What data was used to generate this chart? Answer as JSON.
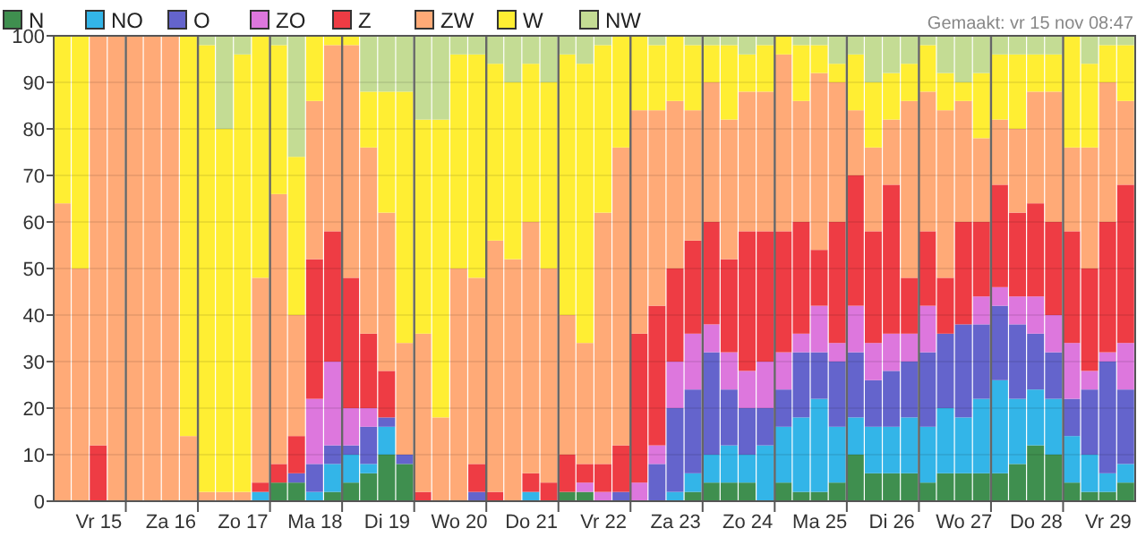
{
  "chart_data": {
    "type": "bar",
    "stacked": true,
    "legend": "top left",
    "grid": true,
    "annotations": [
      "Gemaakt: vr 15 nov 08:47"
    ],
    "categories": [
      null,
      null,
      "Vr 15",
      null,
      null,
      null,
      "Za 16",
      null,
      null,
      null,
      "Zo 17",
      null,
      null,
      null,
      "Ma 18",
      null,
      null,
      null,
      "Di 19",
      null,
      null,
      null,
      "Wo 20",
      null,
      null,
      null,
      "Do 21",
      null,
      null,
      null,
      "Vr 22",
      null,
      null,
      null,
      "Za 23",
      null,
      null,
      null,
      "Zo 24",
      null,
      null,
      null,
      "Ma 25",
      null,
      null,
      null,
      "Di 26",
      null,
      null,
      null,
      "Wo 27",
      null,
      null,
      null,
      "Do 28",
      null,
      null,
      null,
      "Vr 29",
      null
    ],
    "ylim": [
      0,
      100
    ],
    "yticks": [
      0,
      10,
      20,
      30,
      40,
      50,
      60,
      70,
      80,
      90,
      100
    ],
    "series": [
      {
        "name": "N",
        "color": "#3f8f4f",
        "values": [
          0,
          0,
          0,
          0,
          0,
          0,
          0,
          0,
          0,
          0,
          0,
          0,
          4,
          4,
          0,
          2,
          4,
          6,
          10,
          8,
          0,
          0,
          0,
          0,
          0,
          0,
          0,
          0,
          2,
          2,
          0,
          0,
          0,
          0,
          0,
          2,
          4,
          4,
          4,
          0,
          4,
          2,
          2,
          4,
          10,
          6,
          6,
          6,
          4,
          6,
          6,
          6,
          6,
          8,
          12,
          10,
          4,
          2,
          2,
          4
        ]
      },
      {
        "name": "NO",
        "color": "#33b5e8",
        "values": [
          0,
          0,
          0,
          0,
          0,
          0,
          0,
          0,
          0,
          0,
          0,
          2,
          0,
          0,
          2,
          6,
          6,
          2,
          6,
          0,
          0,
          0,
          0,
          0,
          0,
          0,
          2,
          0,
          0,
          0,
          0,
          0,
          0,
          0,
          2,
          4,
          6,
          8,
          6,
          12,
          12,
          16,
          20,
          12,
          8,
          10,
          10,
          12,
          12,
          14,
          12,
          16,
          20,
          14,
          12,
          12,
          10,
          8,
          4,
          4
        ]
      },
      {
        "name": "O",
        "color": "#6464cc",
        "values": [
          0,
          0,
          0,
          0,
          0,
          0,
          0,
          0,
          0,
          0,
          0,
          0,
          0,
          2,
          6,
          4,
          2,
          8,
          2,
          2,
          0,
          0,
          0,
          2,
          0,
          0,
          0,
          0,
          0,
          0,
          0,
          2,
          0,
          8,
          18,
          18,
          22,
          12,
          10,
          8,
          8,
          14,
          10,
          14,
          14,
          10,
          12,
          12,
          16,
          16,
          20,
          16,
          16,
          16,
          12,
          10,
          8,
          14,
          24,
          16
        ]
      },
      {
        "name": "ZO",
        "color": "#dd77dd",
        "values": [
          0,
          0,
          0,
          0,
          0,
          0,
          0,
          0,
          0,
          0,
          0,
          0,
          0,
          0,
          14,
          18,
          8,
          4,
          0,
          0,
          0,
          0,
          0,
          0,
          0,
          0,
          0,
          0,
          0,
          2,
          2,
          0,
          4,
          4,
          10,
          12,
          6,
          8,
          8,
          10,
          8,
          4,
          10,
          4,
          10,
          8,
          8,
          6,
          10,
          0,
          0,
          6,
          4,
          6,
          8,
          8,
          12,
          4,
          2,
          10
        ]
      },
      {
        "name": "Z",
        "color": "#ee3c44",
        "values": [
          0,
          0,
          12,
          0,
          0,
          0,
          0,
          0,
          0,
          0,
          0,
          2,
          4,
          8,
          30,
          28,
          28,
          16,
          10,
          0,
          2,
          0,
          0,
          6,
          2,
          0,
          4,
          4,
          8,
          4,
          6,
          10,
          32,
          30,
          20,
          20,
          22,
          20,
          30,
          28,
          26,
          24,
          12,
          26,
          28,
          24,
          32,
          12,
          16,
          12,
          22,
          16,
          22,
          18,
          20,
          20,
          24,
          22,
          28,
          34
        ]
      },
      {
        "name": "ZW",
        "color": "#ffaa77",
        "values": [
          64,
          50,
          88,
          100,
          100,
          100,
          100,
          14,
          2,
          2,
          2,
          44,
          58,
          26,
          34,
          40,
          50,
          40,
          34,
          24,
          34,
          18,
          50,
          40,
          54,
          52,
          54,
          46,
          30,
          26,
          54,
          64,
          48,
          42,
          36,
          28,
          30,
          30,
          30,
          30,
          38,
          26,
          38,
          30,
          14,
          18,
          14,
          38,
          30,
          36,
          26,
          18,
          14,
          18,
          24,
          28,
          18,
          26,
          30,
          18
        ]
      },
      {
        "name": "W",
        "color": "#ffee33",
        "values": [
          36,
          50,
          0,
          0,
          0,
          0,
          0,
          86,
          96,
          78,
          94,
          52,
          32,
          34,
          14,
          2,
          2,
          12,
          26,
          54,
          46,
          64,
          46,
          48,
          38,
          38,
          34,
          40,
          56,
          60,
          36,
          24,
          16,
          14,
          14,
          14,
          8,
          16,
          8,
          10,
          4,
          12,
          6,
          4,
          12,
          14,
          10,
          8,
          10,
          8,
          4,
          14,
          14,
          16,
          8,
          8,
          24,
          18,
          8,
          12
        ]
      },
      {
        "name": "NW",
        "color": "#c4dc94",
        "values": [
          0,
          0,
          0,
          0,
          0,
          0,
          0,
          0,
          2,
          20,
          4,
          0,
          2,
          26,
          0,
          0,
          0,
          12,
          12,
          12,
          18,
          18,
          4,
          4,
          6,
          10,
          6,
          10,
          4,
          6,
          2,
          0,
          0,
          2,
          0,
          2,
          2,
          2,
          4,
          2,
          0,
          2,
          2,
          6,
          4,
          10,
          8,
          6,
          2,
          8,
          10,
          8,
          4,
          4,
          4,
          4,
          0,
          6,
          2,
          2
        ]
      }
    ]
  }
}
